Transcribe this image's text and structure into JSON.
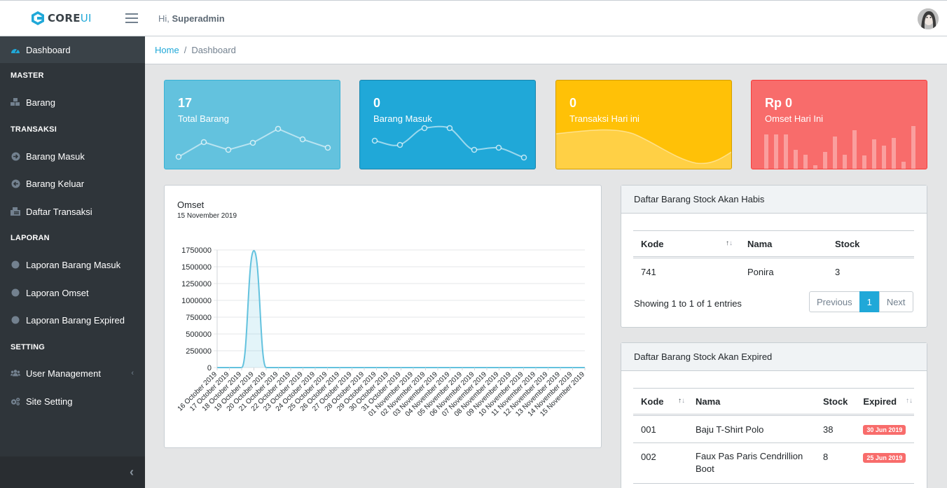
{
  "header": {
    "brand_core": "CORE",
    "brand_ui": "UI",
    "greeting_prefix": "Hi,",
    "username": "Superadmin"
  },
  "sidebar": {
    "dashboard": "Dashboard",
    "sections": {
      "master": "MASTER",
      "transaksi": "TRANSAKSI",
      "laporan": "LAPORAN",
      "setting": "SETTING"
    },
    "items": {
      "barang": "Barang",
      "barang_masuk": "Barang Masuk",
      "barang_keluar": "Barang Keluar",
      "daftar_transaksi": "Daftar Transaksi",
      "laporan_barang_masuk": "Laporan Barang Masuk",
      "laporan_omset": "Laporan Omset",
      "laporan_barang_expired": "Laporan Barang Expired",
      "user_management": "User Management",
      "site_setting": "Site Setting"
    },
    "caret": "‹",
    "minimizer": "‹"
  },
  "breadcrumb": {
    "home": "Home",
    "separator": "/",
    "current": "Dashboard"
  },
  "widgets": [
    {
      "value": "17",
      "label": "Total Barang",
      "color": "#63c2de"
    },
    {
      "value": "0",
      "label": "Barang Masuk",
      "color": "#20a8d8"
    },
    {
      "value": "0",
      "label": "Transaksi Hari ini",
      "color": "#ffc107"
    },
    {
      "value": "Rp 0",
      "label": "Omset Hari Ini",
      "color": "#f86c6b"
    }
  ],
  "omset_card": {
    "title": "Omset",
    "subtitle": "15 November 2019"
  },
  "chart_data": {
    "type": "area",
    "title": "Omset",
    "subtitle": "15 November 2019",
    "x": [
      "16 October 2019",
      "17 October 2019",
      "18 October 2019",
      "19 October 2019",
      "20 October 2019",
      "21 October 2019",
      "22 October 2019",
      "23 October 2019",
      "24 October 2019",
      "25 October 2019",
      "26 October 2019",
      "27 October 2019",
      "28 October 2019",
      "29 October 2019",
      "30 October 2019",
      "31 October 2019",
      "01 November 2019",
      "02 November 2019",
      "03 November 2019",
      "04 November 2019",
      "05 November 2019",
      "06 November 2019",
      "07 November 2019",
      "08 November 2019",
      "09 November 2019",
      "10 November 2019",
      "11 November 2019",
      "12 November 2019",
      "13 November 2019",
      "14 November 2019",
      "15 November 2019"
    ],
    "values": [
      0,
      0,
      0,
      1740000,
      0,
      0,
      0,
      0,
      0,
      0,
      0,
      0,
      0,
      0,
      0,
      0,
      0,
      0,
      0,
      0,
      0,
      0,
      0,
      0,
      0,
      0,
      0,
      0,
      0,
      0,
      0
    ],
    "yticks": [
      0,
      250000,
      500000,
      750000,
      1000000,
      1250000,
      1500000,
      1750000
    ],
    "ylim": [
      0,
      1750000
    ],
    "grid": true,
    "color": "#63c2de"
  },
  "stock_habis": {
    "title": "Daftar Barang Stock Akan Habis",
    "columns": [
      "Kode",
      "Nama",
      "Stock"
    ],
    "rows": [
      {
        "kode": "741",
        "nama": "Ponira",
        "stock": "3"
      }
    ],
    "info": "Showing 1 to 1 of 1 entries",
    "pagination": {
      "previous": "Previous",
      "page": "1",
      "next": "Next"
    }
  },
  "stock_expired": {
    "title": "Daftar Barang Stock Akan Expired",
    "columns": [
      "Kode",
      "Nama",
      "Stock",
      "Expired"
    ],
    "rows": [
      {
        "kode": "001",
        "nama": "Baju T-Shirt Polo",
        "stock": "38",
        "expired": "30 Jun 2019"
      },
      {
        "kode": "002",
        "nama": "Faux Pas Paris Cendrillion Boot",
        "stock": "8",
        "expired": "25 Jun 2019"
      }
    ]
  }
}
